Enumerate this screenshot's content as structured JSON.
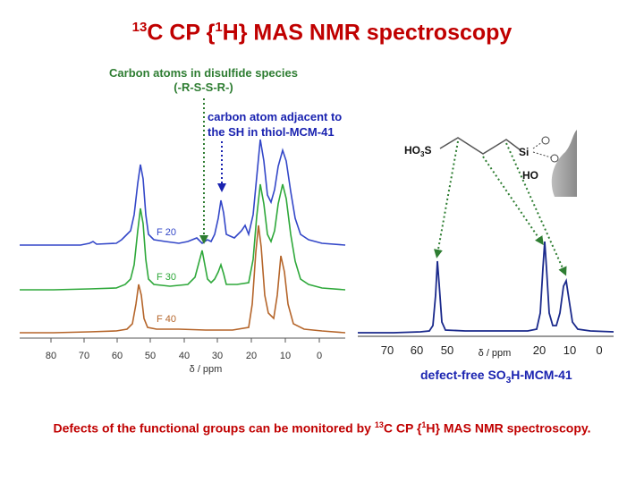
{
  "title": {
    "sup1": "13",
    "part1": "C CP {",
    "sup2": "1",
    "part2": "H} MAS NMR spectroscopy"
  },
  "annotations": {
    "disulfide_line1": "Carbon atoms in disulfide species",
    "disulfide_line2": "(-R-S-S-R-)",
    "thiol_line1": "carbon atom adjacent to",
    "thiol_line2": "the SH in thiol-MCM-41"
  },
  "left_spectra": {
    "labels": [
      "F 20",
      "F 30",
      "F 40"
    ],
    "colors": [
      "#3347c8",
      "#2ea83a",
      "#b5652a"
    ],
    "ticks": [
      "80",
      "70",
      "60",
      "50",
      "40",
      "30",
      "20",
      "10",
      "0"
    ],
    "axis_label": "δ / ppm"
  },
  "right_spectrum": {
    "color": "#1b2a8c",
    "ticks": [
      "70",
      "60",
      "50",
      "",
      "20",
      "10",
      "0"
    ],
    "axis_label": "δ / ppm",
    "molecule": {
      "group": "HO",
      "group_sub": "3",
      "group_end": "S",
      "si": "Si",
      "ho": "HO"
    }
  },
  "caption_right": {
    "part1": "defect-free SO",
    "sub": "3",
    "part2": "H-MCM-41"
  },
  "bottom": {
    "part1": "Defects of the functional groups can be monitored by ",
    "sup1": "13",
    "part2": "C CP {",
    "sup2": "1",
    "part3": "H} MAS NMR spectroscopy."
  }
}
